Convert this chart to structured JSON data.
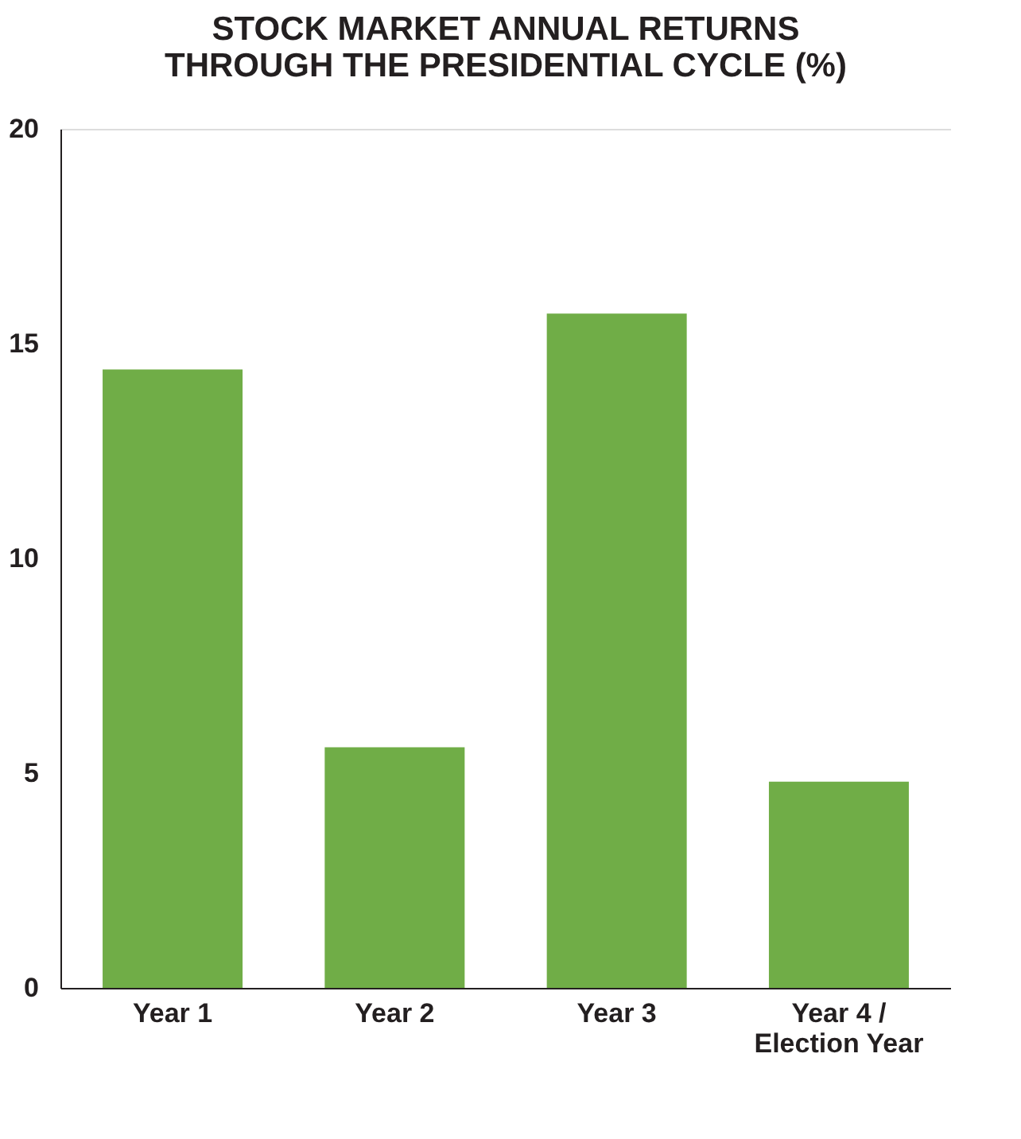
{
  "chart_data": {
    "type": "bar",
    "title": "STOCK MARKET ANNUAL RETURNS THROUGH THE PRESIDENTIAL CYCLE (%)",
    "categories": [
      "Year 1",
      "Year 2",
      "Year 3",
      "Year 4 / Election Year"
    ],
    "values": [
      14.4,
      5.6,
      15.7,
      4.8
    ],
    "color": "#70ad47",
    "ylim": [
      0,
      20
    ],
    "yticks": [
      0,
      5,
      10,
      15,
      20
    ],
    "grid": false
  }
}
